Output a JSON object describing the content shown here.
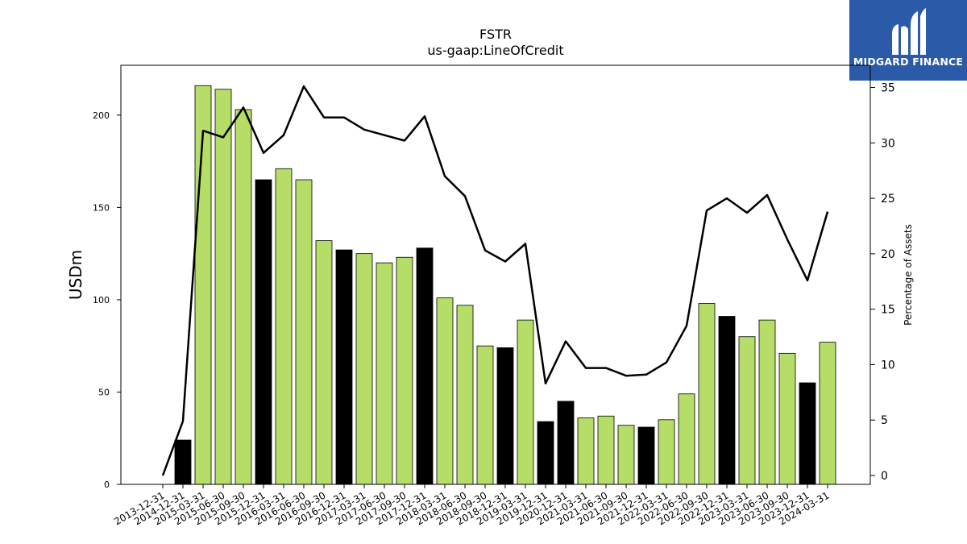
{
  "brand": {
    "name": "MIDGARD FINANCE",
    "bg_color": "#2b5aa8"
  },
  "chart_data": {
    "type": "bar",
    "title": "FSTR",
    "subtitle": "us-gaap:LineOfCredit",
    "ylabel": "USDm",
    "y2label": "Percentage of Assets",
    "ylim": [
      0,
      227
    ],
    "y2lim": [
      -0.8,
      37.0
    ],
    "yticks": [
      0,
      50,
      100,
      150,
      200
    ],
    "y2ticks": [
      0,
      5,
      10,
      15,
      20,
      25,
      30,
      35
    ],
    "colors": {
      "bar": "#b5dd67",
      "bar_q4": "#000000",
      "line": "#000000"
    },
    "categories": [
      "2013-12-31",
      "2014-12-31",
      "2015-03-31",
      "2015-06-30",
      "2015-09-30",
      "2015-12-31",
      "2016-03-31",
      "2016-06-30",
      "2016-09-30",
      "2016-12-31",
      "2017-03-31",
      "2017-06-30",
      "2017-09-30",
      "2017-12-31",
      "2018-03-31",
      "2018-06-30",
      "2018-09-30",
      "2018-12-31",
      "2019-03-31",
      "2019-12-31",
      "2020-12-31",
      "2021-03-31",
      "2021-06-30",
      "2021-09-30",
      "2021-12-31",
      "2022-03-31",
      "2022-06-30",
      "2022-09-30",
      "2022-12-31",
      "2023-03-31",
      "2023-06-30",
      "2023-09-30",
      "2023-12-31",
      "2024-03-31"
    ],
    "series": [
      {
        "kind": "bar",
        "values": [
          0,
          24,
          216,
          214,
          203,
          165,
          171,
          165,
          132,
          127,
          125,
          120,
          123,
          128,
          101,
          97,
          75,
          74,
          89,
          34,
          45,
          36,
          37,
          32,
          31,
          35,
          49,
          98,
          91,
          80,
          89,
          71,
          55,
          77
        ]
      },
      {
        "kind": "line",
        "axis": "right",
        "values": [
          0,
          4.9,
          31.1,
          30.5,
          33.2,
          29.1,
          30.7,
          35.1,
          32.3,
          32.3,
          31.2,
          30.7,
          30.2,
          32.4,
          27.0,
          25.2,
          20.3,
          19.3,
          20.9,
          8.3,
          12.1,
          9.7,
          9.7,
          9.0,
          9.1,
          10.2,
          13.5,
          23.9,
          25.0,
          23.7,
          25.3,
          21.3,
          17.6,
          23.8
        ]
      }
    ]
  }
}
